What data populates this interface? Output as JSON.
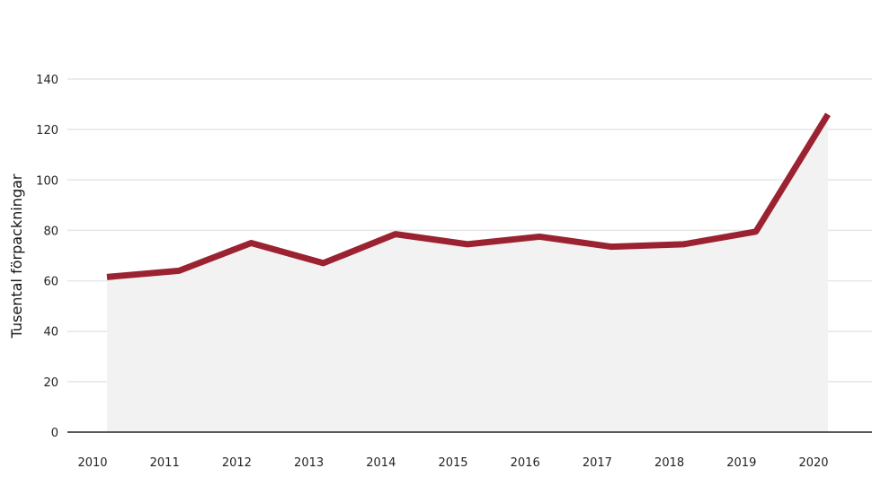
{
  "chart_data": {
    "type": "area",
    "title": "",
    "xlabel": "",
    "ylabel": "Tusental förpackningar",
    "x": [
      "2010",
      "2011",
      "2012",
      "2013",
      "2014",
      "2015",
      "2016",
      "2017",
      "2018",
      "2019",
      "2020"
    ],
    "series": [
      {
        "values": [
          61.5,
          64,
          75,
          67,
          78.5,
          74.5,
          77.5,
          73.5,
          74.5,
          79.5,
          126
        ]
      }
    ],
    "ylim": [
      0,
      140
    ],
    "yticks": [
      "0",
      "20",
      "40",
      "60",
      "80",
      "100",
      "120",
      "140"
    ],
    "grid": true,
    "legend": "none",
    "colors": {
      "line": "#9b2230",
      "area": "#f2f2f2",
      "grid": "#e6e6e6",
      "axis": "#222222"
    }
  }
}
